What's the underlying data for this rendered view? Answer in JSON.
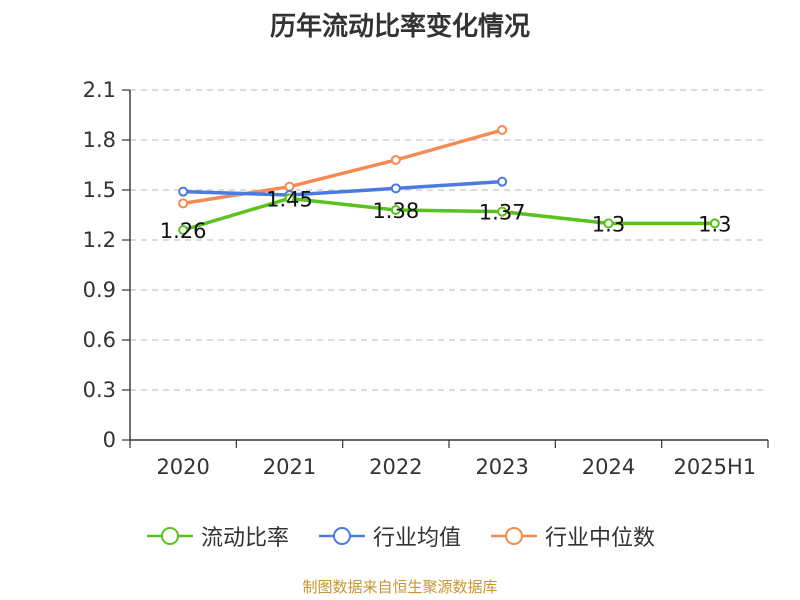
{
  "chart_data": {
    "type": "line",
    "title": "历年流动比率变化情况",
    "categories": [
      "2020",
      "2021",
      "2022",
      "2023",
      "2024",
      "2025H1"
    ],
    "ylim": [
      0,
      2.1
    ],
    "yticks": [
      "0",
      "0.3",
      "0.6",
      "0.9",
      "1.2",
      "1.5",
      "1.8",
      "2.1"
    ],
    "grid": true,
    "legend_position": "bottom",
    "series": [
      {
        "name": "流动比率",
        "color": "#5ac21e",
        "values": [
          1.26,
          1.45,
          1.38,
          1.37,
          1.3,
          1.3
        ],
        "labels": [
          "1.26",
          "1.45",
          "1.38",
          "1.37",
          "1.3",
          "1.3"
        ]
      },
      {
        "name": "行业均值",
        "color": "#4b7be0",
        "values": [
          1.49,
          1.47,
          1.51,
          1.55,
          null,
          null
        ]
      },
      {
        "name": "行业中位数",
        "color": "#f58a52",
        "values": [
          1.42,
          1.52,
          1.68,
          1.86,
          null,
          null
        ]
      }
    ]
  },
  "source": "制图数据来自恒生聚源数据库"
}
